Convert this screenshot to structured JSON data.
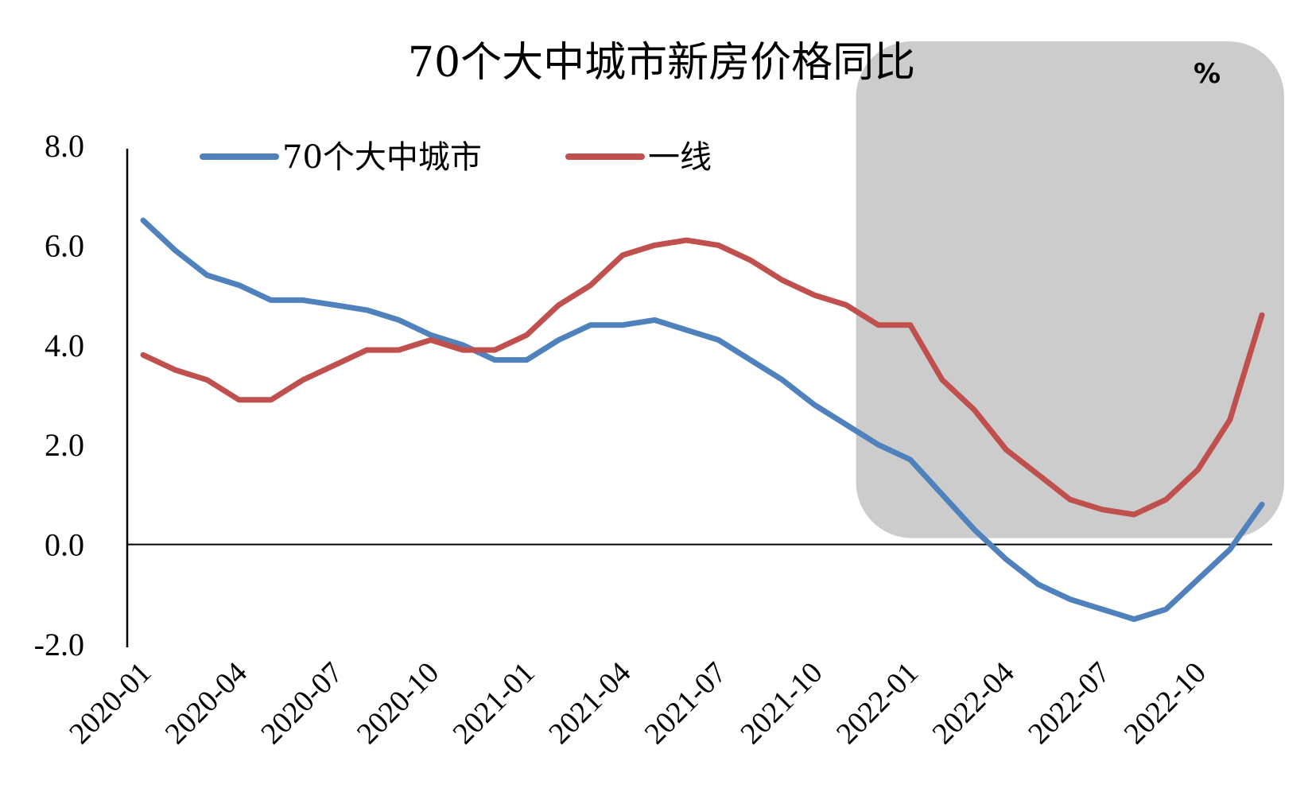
{
  "chart_data": {
    "type": "line",
    "title": "70个大中城市新房价格同比",
    "unit": "%",
    "ylim": [
      -2.0,
      8.0
    ],
    "yticks": [
      "8.0",
      "6.0",
      "4.0",
      "2.0",
      "0.0",
      "-2.0"
    ],
    "ytick_values": [
      8,
      6,
      4,
      2,
      0,
      -2
    ],
    "xtick_labels": [
      "2020-01",
      "2020-04",
      "2020-07",
      "2020-10",
      "2021-01",
      "2021-04",
      "2021-07",
      "2021-10",
      "2022-01",
      "2022-04",
      "2022-07",
      "2022-10"
    ],
    "x": [
      "2020-01",
      "2020-02",
      "2020-03",
      "2020-04",
      "2020-05",
      "2020-06",
      "2020-07",
      "2020-08",
      "2020-09",
      "2020-10",
      "2020-11",
      "2020-12",
      "2021-01",
      "2021-02",
      "2021-03",
      "2021-04",
      "2021-05",
      "2021-06",
      "2021-07",
      "2021-08",
      "2021-09",
      "2021-10",
      "2021-11",
      "2021-12",
      "2022-01",
      "2022-02",
      "2022-03",
      "2022-04",
      "2022-05",
      "2022-06",
      "2022-07",
      "2022-08",
      "2022-09",
      "2022-10",
      "2022-11",
      "2022-12"
    ],
    "series": [
      {
        "name": "70个大中城市",
        "color": "#4f81bd",
        "values": [
          6.5,
          5.9,
          5.4,
          5.2,
          4.9,
          4.9,
          4.8,
          4.7,
          4.5,
          4.2,
          4.0,
          3.7,
          3.7,
          4.1,
          4.4,
          4.4,
          4.5,
          4.3,
          4.1,
          3.7,
          3.3,
          2.8,
          2.4,
          2.0,
          1.7,
          1.0,
          0.3,
          -0.3,
          -0.8,
          -1.1,
          -1.3,
          -1.5,
          -1.3,
          -0.7,
          -0.1,
          0.8
        ]
      },
      {
        "name": "一线",
        "color": "#c0504d",
        "values": [
          3.8,
          3.5,
          3.3,
          2.9,
          2.9,
          3.3,
          3.6,
          3.9,
          3.9,
          4.1,
          3.9,
          3.9,
          4.2,
          4.8,
          5.2,
          5.8,
          6.0,
          6.1,
          6.0,
          5.7,
          5.3,
          5.0,
          4.8,
          4.4,
          4.4,
          3.3,
          2.7,
          1.9,
          1.4,
          0.9,
          0.7,
          0.6,
          0.9,
          1.5,
          2.5,
          4.6
        ]
      }
    ],
    "highlight": {
      "from": "2021-12",
      "to": "2022-12",
      "color": "#cccccc"
    },
    "legend_position": "top-left",
    "grid": false
  }
}
